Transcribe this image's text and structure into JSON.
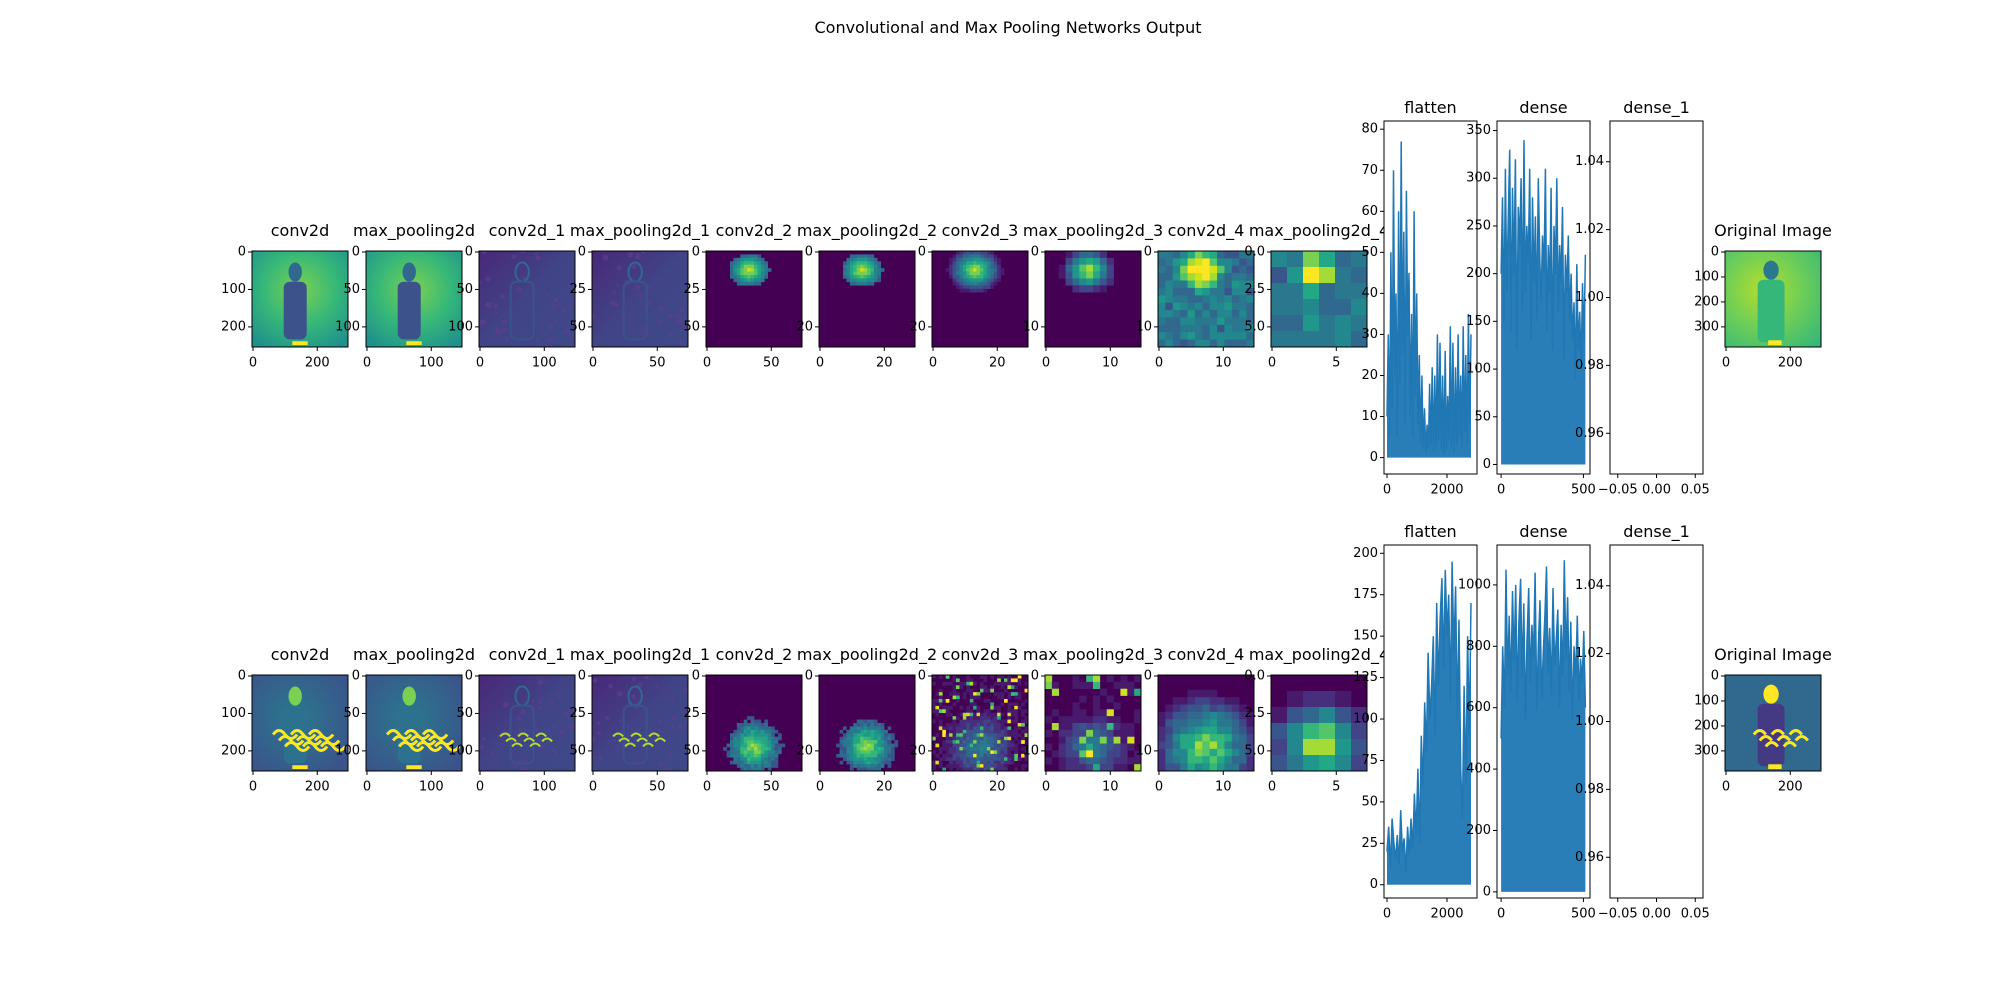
{
  "suptitle": "Convolutional and Max Pooling Networks Output",
  "colors": {
    "line": "#1f77b4",
    "viridis_dark": "#440154",
    "viridis_mid": "#21918c",
    "viridis_bright": "#fde725"
  },
  "chart_data": [
    {
      "row": 1,
      "panels": [
        {
          "type": "heatmap",
          "title": "conv2d",
          "xticks": [
            "0",
            "200"
          ],
          "yticks": [
            "0",
            "100",
            "200"
          ]
        },
        {
          "type": "heatmap",
          "title": "max_pooling2d",
          "xticks": [
            "0",
            "100"
          ],
          "yticks": [
            "0",
            "50",
            "100"
          ]
        },
        {
          "type": "heatmap",
          "title": "conv2d_1",
          "xticks": [
            "0",
            "100"
          ],
          "yticks": [
            "0",
            "50",
            "100"
          ]
        },
        {
          "type": "heatmap",
          "title": "max_pooling2d_1",
          "xticks": [
            "0",
            "50"
          ],
          "yticks": [
            "0",
            "25",
            "50"
          ]
        },
        {
          "type": "heatmap",
          "title": "conv2d_2",
          "xticks": [
            "0",
            "50"
          ],
          "yticks": [
            "0",
            "25",
            "50"
          ]
        },
        {
          "type": "heatmap",
          "title": "max_pooling2d_2",
          "xticks": [
            "0",
            "20"
          ],
          "yticks": [
            "0",
            "20"
          ]
        },
        {
          "type": "heatmap",
          "title": "conv2d_3",
          "xticks": [
            "0",
            "20"
          ],
          "yticks": [
            "0",
            "20"
          ]
        },
        {
          "type": "heatmap",
          "title": "max_pooling2d_3",
          "xticks": [
            "0",
            "10"
          ],
          "yticks": [
            "0",
            "10"
          ]
        },
        {
          "type": "heatmap",
          "title": "conv2d_4",
          "xticks": [
            "0",
            "10"
          ],
          "yticks": [
            "0",
            "10"
          ]
        },
        {
          "type": "heatmap",
          "title": "max_pooling2d_4",
          "xticks": [
            "0",
            "5"
          ],
          "yticks": [
            "0.0",
            "2.5",
            "5.0"
          ]
        },
        {
          "type": "line",
          "title": "flatten",
          "xticks": [
            "0",
            "2000"
          ],
          "xlim": [
            -100,
            3000
          ],
          "ylim": [
            -4,
            82
          ],
          "yticks": [
            "0",
            "10",
            "20",
            "30",
            "40",
            "50",
            "60",
            "70",
            "80"
          ],
          "values": [
            10,
            30,
            5,
            50,
            12,
            70,
            20,
            40,
            5,
            60,
            18,
            77,
            25,
            55,
            8,
            65,
            30,
            45,
            10,
            35,
            5,
            60,
            15,
            40,
            8,
            25,
            3,
            20,
            2,
            12,
            1,
            8,
            2,
            18,
            3,
            22,
            1,
            20,
            2,
            30,
            4,
            28,
            2,
            20,
            1,
            26,
            2,
            15,
            4,
            32,
            2,
            28,
            1,
            22,
            3,
            30,
            5,
            20,
            2,
            32,
            6,
            25,
            3,
            35,
            8,
            30
          ]
        },
        {
          "type": "line",
          "title": "dense",
          "xticks": [
            "0",
            "500"
          ],
          "xlim": [
            -25,
            540
          ],
          "ylim": [
            -10,
            360
          ],
          "yticks": [
            "0",
            "50",
            "100",
            "150",
            "200",
            "250",
            "300",
            "350"
          ],
          "values": [
            200,
            280,
            150,
            310,
            180,
            260,
            330,
            140,
            290,
            200,
            320,
            120,
            270,
            230,
            300,
            160,
            340,
            180,
            250,
            210,
            310,
            130,
            280,
            190,
            260,
            150,
            300,
            220,
            170,
            240,
            200,
            310,
            140,
            230,
            180,
            290,
            120,
            250,
            200,
            300,
            160,
            230,
            190,
            270,
            110,
            220,
            180,
            240,
            150,
            200,
            130,
            170,
            90,
            210,
            120,
            160,
            100,
            190,
            130,
            220
          ]
        },
        {
          "type": "line",
          "title": "dense_1",
          "xticks": [
            "−0.05",
            "0.00",
            "0.05"
          ],
          "xlim": [
            -0.06,
            0.06
          ],
          "ylim": [
            0.948,
            1.052
          ],
          "yticks": [
            "0.96",
            "0.98",
            "1.00",
            "1.02",
            "1.04"
          ],
          "values": []
        },
        {
          "type": "heatmap",
          "title": "Original Image",
          "xticks": [
            "0",
            "200"
          ],
          "yticks": [
            "0",
            "100",
            "200",
            "300"
          ]
        }
      ]
    },
    {
      "row": 2,
      "panels": [
        {
          "type": "heatmap",
          "title": "conv2d",
          "xticks": [
            "0",
            "200"
          ],
          "yticks": [
            "0",
            "100",
            "200"
          ]
        },
        {
          "type": "heatmap",
          "title": "max_pooling2d",
          "xticks": [
            "0",
            "100"
          ],
          "yticks": [
            "0",
            "50",
            "100"
          ]
        },
        {
          "type": "heatmap",
          "title": "conv2d_1",
          "xticks": [
            "0",
            "100"
          ],
          "yticks": [
            "0",
            "50",
            "100"
          ]
        },
        {
          "type": "heatmap",
          "title": "max_pooling2d_1",
          "xticks": [
            "0",
            "50"
          ],
          "yticks": [
            "0",
            "25",
            "50"
          ]
        },
        {
          "type": "heatmap",
          "title": "conv2d_2",
          "xticks": [
            "0",
            "50"
          ],
          "yticks": [
            "0",
            "25",
            "50"
          ]
        },
        {
          "type": "heatmap",
          "title": "max_pooling2d_2",
          "xticks": [
            "0",
            "20"
          ],
          "yticks": [
            "0",
            "20"
          ]
        },
        {
          "type": "heatmap",
          "title": "conv2d_3",
          "xticks": [
            "0",
            "20"
          ],
          "yticks": [
            "0",
            "20"
          ]
        },
        {
          "type": "heatmap",
          "title": "max_pooling2d_3",
          "xticks": [
            "0",
            "10"
          ],
          "yticks": [
            "0",
            "10"
          ]
        },
        {
          "type": "heatmap",
          "title": "conv2d_4",
          "xticks": [
            "0",
            "10"
          ],
          "yticks": [
            "0",
            "10"
          ]
        },
        {
          "type": "heatmap",
          "title": "max_pooling2d_4",
          "xticks": [
            "0",
            "5"
          ],
          "yticks": [
            "0.0",
            "2.5",
            "5.0"
          ]
        },
        {
          "type": "line",
          "title": "flatten",
          "xticks": [
            "0",
            "2000"
          ],
          "xlim": [
            -100,
            3000
          ],
          "ylim": [
            -8,
            205
          ],
          "yticks": [
            "0",
            "25",
            "50",
            "75",
            "100",
            "125",
            "150",
            "175",
            "200"
          ],
          "values": [
            20,
            35,
            10,
            40,
            25,
            15,
            30,
            12,
            45,
            20,
            28,
            8,
            35,
            18,
            40,
            22,
            55,
            30,
            70,
            25,
            90,
            60,
            110,
            80,
            140,
            100,
            120,
            150,
            90,
            170,
            120,
            160,
            185,
            130,
            190,
            150,
            175,
            110,
            195,
            140,
            180,
            100,
            160,
            70,
            40,
            120,
            60,
            150,
            90,
            170
          ]
        },
        {
          "type": "line",
          "title": "dense",
          "xticks": [
            "0",
            "500"
          ],
          "xlim": [
            -25,
            540
          ],
          "ylim": [
            -20,
            1130
          ],
          "yticks": [
            "0",
            "200",
            "400",
            "600",
            "800",
            "1000"
          ],
          "values": [
            500,
            800,
            600,
            1050,
            700,
            900,
            650,
            980,
            750,
            1000,
            620,
            880,
            1020,
            700,
            940,
            560,
            820,
            990,
            680,
            870,
            760,
            1040,
            590,
            810,
            950,
            630,
            780,
            900,
            1060,
            710,
            860,
            640,
            990,
            740,
            820,
            920,
            600,
            870,
            700,
            1080,
            760,
            960,
            650,
            880,
            560,
            800,
            700,
            900,
            620,
            760,
            680,
            850,
            600
          ]
        },
        {
          "type": "line",
          "title": "dense_1",
          "xticks": [
            "−0.05",
            "0.00",
            "0.05"
          ],
          "xlim": [
            -0.06,
            0.06
          ],
          "ylim": [
            0.948,
            1.052
          ],
          "yticks": [
            "0.96",
            "0.98",
            "1.00",
            "1.02",
            "1.04"
          ],
          "values": []
        },
        {
          "type": "heatmap",
          "title": "Original Image",
          "xticks": [
            "0",
            "200"
          ],
          "yticks": [
            "0",
            "100",
            "200",
            "300"
          ]
        }
      ]
    }
  ]
}
